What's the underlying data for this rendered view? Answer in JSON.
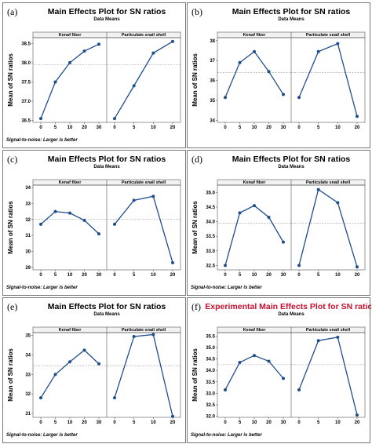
{
  "chart_data": [
    {
      "type": "line",
      "panel_label": "(a)",
      "title": "Main Effects Plot for SN ratios",
      "subtitle": "Data Means",
      "ylabel": "Mean of SN ratios",
      "footnote": "Signal-to-noise: Larger is better",
      "ylim": [
        36.45,
        38.65
      ],
      "yticks": [
        "36.5",
        "37.0",
        "37.5",
        "38.0",
        "38.5"
      ],
      "mean_line": 37.95,
      "factors": [
        {
          "name": "Kenaf fiber",
          "x": [
            "0",
            "5",
            "10",
            "20",
            "30"
          ],
          "values": [
            36.55,
            37.5,
            38.0,
            38.3,
            38.48
          ]
        },
        {
          "name": "Particulate snail shell",
          "x": [
            "0",
            "5",
            "10",
            "20"
          ],
          "values": [
            36.55,
            37.4,
            38.25,
            38.55
          ]
        }
      ]
    },
    {
      "type": "line",
      "panel_label": "(b)",
      "title": "Main Effects Plot for SN ratios",
      "subtitle": "Data Means",
      "ylabel": "Mean of SN ratios",
      "footnote": "",
      "ylim": [
        33.9,
        38.15
      ],
      "yticks": [
        "34",
        "35",
        "36",
        "37",
        "38"
      ],
      "mean_line": 36.4,
      "factors": [
        {
          "name": "Kenaf fiber",
          "x": [
            "0",
            "5",
            "10",
            "20",
            "30"
          ],
          "values": [
            35.15,
            36.9,
            37.45,
            36.45,
            35.3
          ]
        },
        {
          "name": "Particulate snail shell",
          "x": [
            "0",
            "5",
            "10",
            "20"
          ],
          "values": [
            35.15,
            37.45,
            37.85,
            34.2
          ]
        }
      ]
    },
    {
      "type": "line",
      "panel_label": "(c)",
      "title": "Main Effects Plot for SN ratios",
      "subtitle": "Data Means",
      "ylabel": "Mean of SN ratios",
      "footnote": "Signal-to-noise: Larger is better",
      "ylim": [
        28.85,
        34.15
      ],
      "yticks": [
        "29",
        "30",
        "31",
        "32",
        "33",
        "34"
      ],
      "mean_line": 32.0,
      "factors": [
        {
          "name": "Kenaf fiber",
          "x": [
            "0",
            "5",
            "10",
            "20",
            "30"
          ],
          "values": [
            31.7,
            32.5,
            32.4,
            31.95,
            31.1
          ]
        },
        {
          "name": "Particulate snail shell",
          "x": [
            "0",
            "5",
            "10",
            "20"
          ],
          "values": [
            31.7,
            33.2,
            33.45,
            29.3
          ]
        }
      ]
    },
    {
      "type": "line",
      "panel_label": "(d)",
      "title": "Main Effects Plot for SN ratios",
      "subtitle": "Data Means",
      "ylabel": "Mean of SN ratios",
      "footnote": "Signal-to-noise: Larger is better",
      "ylim": [
        32.35,
        35.25
      ],
      "yticks": [
        "32.5",
        "33.0",
        "33.5",
        "34.0",
        "34.5",
        "35.0"
      ],
      "mean_line": 33.95,
      "factors": [
        {
          "name": "Kenaf fiber",
          "x": [
            "0",
            "5",
            "10",
            "20",
            "30"
          ],
          "values": [
            32.5,
            34.3,
            34.55,
            34.15,
            33.3
          ]
        },
        {
          "name": "Particulate snail shell",
          "x": [
            "0",
            "5",
            "10",
            "20"
          ],
          "values": [
            32.5,
            35.1,
            34.65,
            32.45
          ]
        }
      ]
    },
    {
      "type": "line",
      "panel_label": "(e)",
      "title": "Main Effects Plot for SN ratios",
      "subtitle": "Data Means",
      "ylabel": "Mean of SN ratios",
      "footnote": "Signal-to-noise: Larger is better",
      "ylim": [
        30.8,
        35.15
      ],
      "yticks": [
        "31",
        "32",
        "33",
        "34",
        "35"
      ],
      "mean_line": 33.45,
      "factors": [
        {
          "name": "Kenaf fiber",
          "x": [
            "0",
            "5",
            "10",
            "20",
            "30"
          ],
          "values": [
            31.8,
            33.0,
            33.65,
            34.25,
            33.55
          ]
        },
        {
          "name": "Particulate snail shell",
          "x": [
            "0",
            "5",
            "10",
            "20"
          ],
          "values": [
            31.8,
            34.95,
            35.05,
            30.85
          ]
        }
      ]
    },
    {
      "type": "line",
      "panel_label": "(f)",
      "title": "Experimental  Main Effects Plot for SN ratios",
      "title_color": "#c8102e",
      "subtitle": "Data Means",
      "ylabel": "Mean of SN ratios",
      "footnote": "Signal-to-noise: Larger is better",
      "ylim": [
        31.95,
        35.65
      ],
      "yticks": [
        "32.0",
        "32.5",
        "33.0",
        "33.5",
        "34.0",
        "34.5",
        "35.0",
        "35.5"
      ],
      "mean_line": 34.25,
      "factors": [
        {
          "name": "Kenaf fiber",
          "x": [
            "0",
            "5",
            "10",
            "20",
            "30"
          ],
          "values": [
            33.15,
            34.35,
            34.65,
            34.4,
            33.65
          ]
        },
        {
          "name": "Particulate snail shell",
          "x": [
            "0",
            "5",
            "10",
            "20"
          ],
          "values": [
            33.15,
            35.3,
            35.45,
            32.05
          ]
        }
      ]
    }
  ],
  "colors": {
    "line": "#1f4e8c",
    "mean": "#9a9a9a",
    "header_bg": "#f2f2f2"
  }
}
